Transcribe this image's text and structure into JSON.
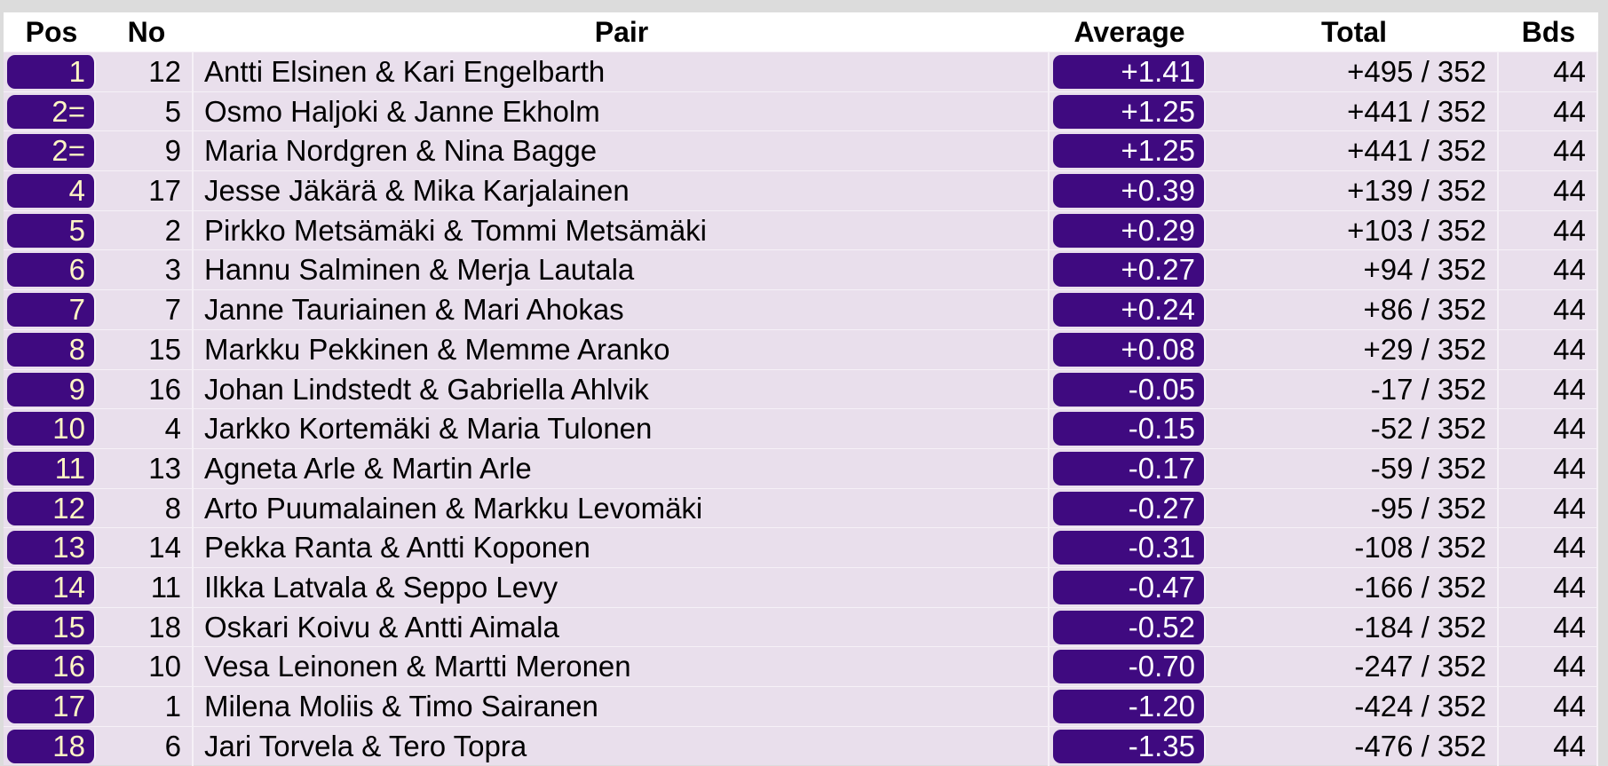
{
  "table": {
    "header": [
      "Pos",
      "No",
      "Pair",
      "Average",
      "Total",
      "Bds"
    ],
    "rows": [
      [
        "1",
        "12",
        "Antti Elsinen & Kari Engelbarth",
        "+1.41",
        "+495 / 352",
        "44"
      ],
      [
        "2=",
        "5",
        "Osmo Haljoki & Janne Ekholm",
        "+1.25",
        "+441 / 352",
        "44"
      ],
      [
        "2=",
        "9",
        "Maria Nordgren & Nina Bagge",
        "+1.25",
        "+441 / 352",
        "44"
      ],
      [
        "4",
        "17",
        "Jesse Jäkärä & Mika Karjalainen",
        "+0.39",
        "+139 / 352",
        "44"
      ],
      [
        "5",
        "2",
        "Pirkko Metsämäki & Tommi Metsämäki",
        "+0.29",
        "+103 / 352",
        "44"
      ],
      [
        "6",
        "3",
        "Hannu Salminen & Merja Lautala",
        "+0.27",
        "+94 / 352",
        "44"
      ],
      [
        "7",
        "7",
        "Janne Tauriainen & Mari Ahokas",
        "+0.24",
        "+86 / 352",
        "44"
      ],
      [
        "8",
        "15",
        "Markku Pekkinen & Memme Aranko",
        "+0.08",
        "+29 / 352",
        "44"
      ],
      [
        "9",
        "16",
        "Johan Lindstedt & Gabriella Ahlvik",
        "-0.05",
        "-17 / 352",
        "44"
      ],
      [
        "10",
        "4",
        "Jarkko Kortemäki & Maria Tulonen",
        "-0.15",
        "-52 / 352",
        "44"
      ],
      [
        "11",
        "13",
        "Agneta Arle & Martin Arle",
        "-0.17",
        "-59 / 352",
        "44"
      ],
      [
        "12",
        "8",
        "Arto Puumalainen & Markku Levomäki",
        "-0.27",
        "-95 / 352",
        "44"
      ],
      [
        "13",
        "14",
        "Pekka Ranta & Antti Koponen",
        "-0.31",
        "-108 / 352",
        "44"
      ],
      [
        "14",
        "11",
        "Ilkka Latvala & Seppo Levy",
        "-0.47",
        "-166 / 352",
        "44"
      ],
      [
        "15",
        "18",
        "Oskari Koivu & Antti Aimala",
        "-0.52",
        "-184 / 352",
        "44"
      ],
      [
        "16",
        "10",
        "Vesa Leinonen & Martti Meronen",
        "-0.70",
        "-247 / 352",
        "44"
      ],
      [
        "17",
        "1",
        "Milena Moliis & Timo Sairanen",
        "-1.20",
        "-424 / 352",
        "44"
      ],
      [
        "18",
        "6",
        "Jari Torvela & Tero Topra",
        "-1.35",
        "-476 / 352",
        "44"
      ]
    ]
  }
}
